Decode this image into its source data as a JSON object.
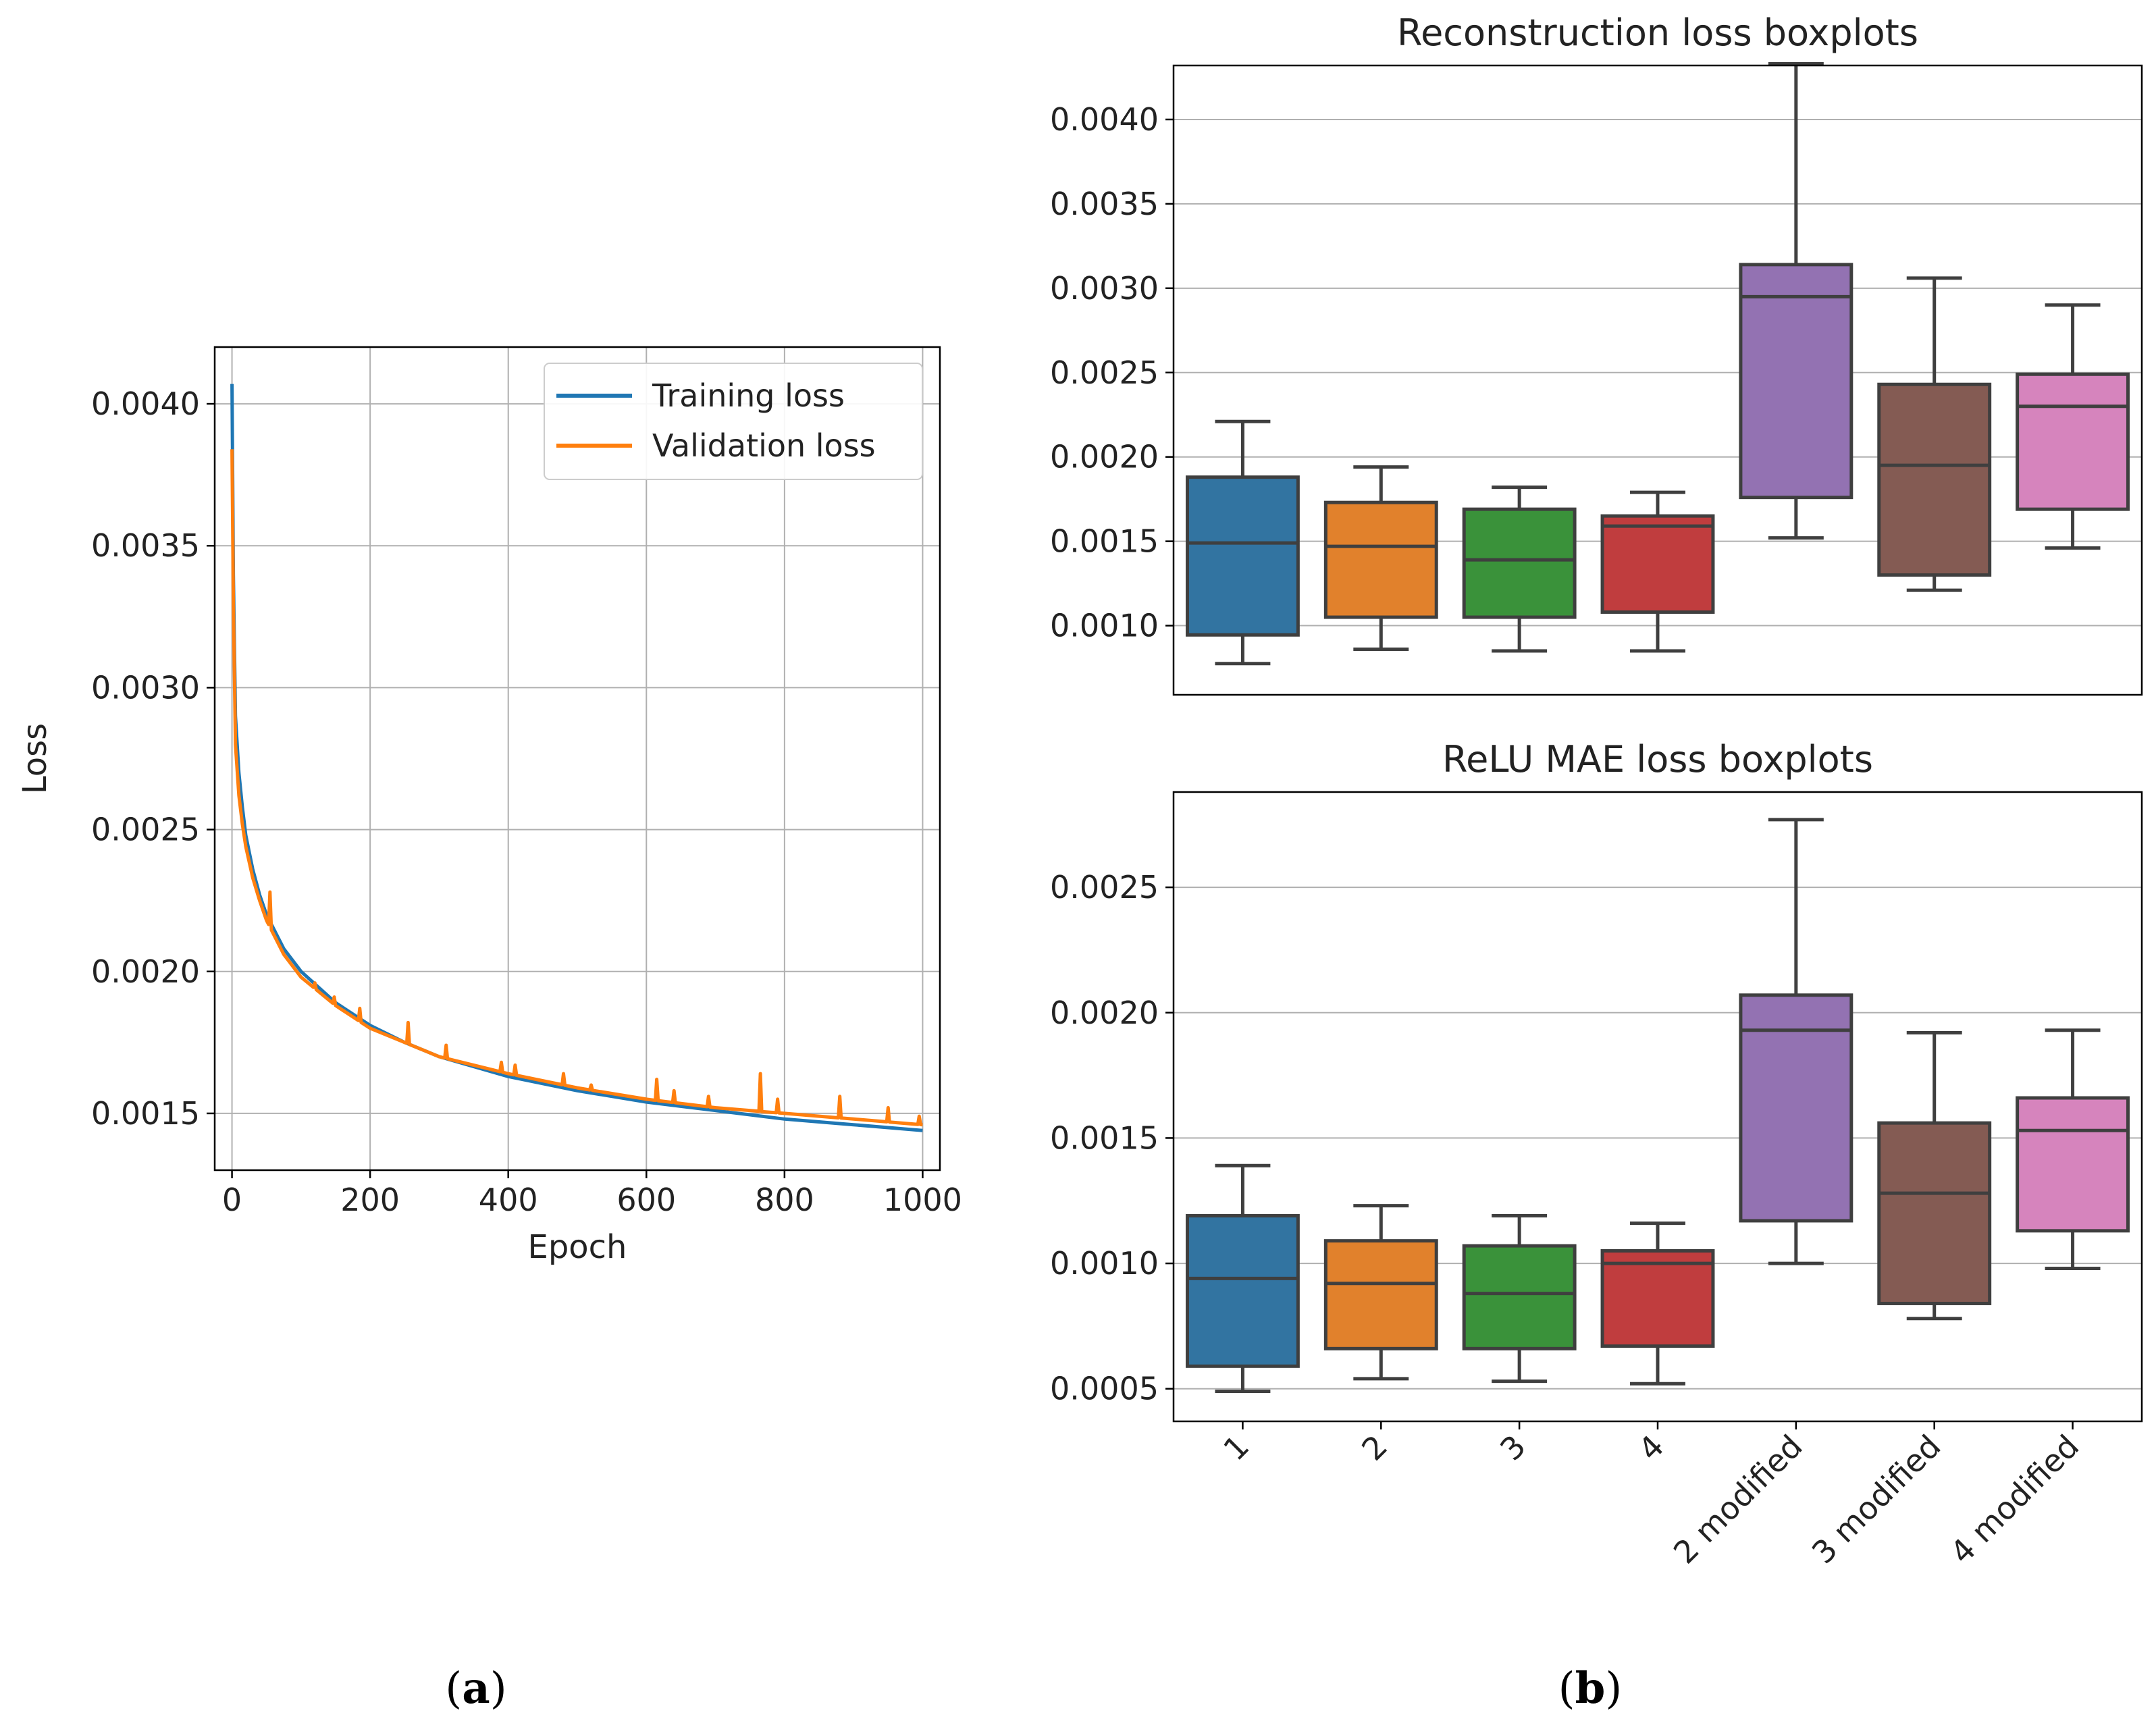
{
  "panels": {
    "a": {
      "open": "(",
      "letter": "a",
      "close": ")"
    },
    "b": {
      "open": "(",
      "letter": "b",
      "close": ")"
    }
  },
  "chart_data": [
    {
      "id": "loss-curve",
      "type": "line",
      "title": "",
      "xlabel": "Epoch",
      "ylabel": "Loss",
      "xlim": [
        -25,
        1025
      ],
      "ylim": [
        0.0013,
        0.0042
      ],
      "grid": true,
      "legend_position": "top-right",
      "xticks": [
        0,
        200,
        400,
        600,
        800,
        1000
      ],
      "xtick_labels": [
        "0",
        "200",
        "400",
        "600",
        "800",
        "1000"
      ],
      "yticks": [
        0.0015,
        0.002,
        0.0025,
        0.003,
        0.0035,
        0.004
      ],
      "ytick_labels": [
        "0.0015",
        "0.0020",
        "0.0025",
        "0.0030",
        "0.0035",
        "0.0040"
      ],
      "series": [
        {
          "name": "Training loss",
          "color": "#1f77b4",
          "x": [
            0,
            2,
            5,
            10,
            15,
            20,
            30,
            40,
            50,
            75,
            100,
            150,
            200,
            250,
            300,
            400,
            500,
            600,
            700,
            800,
            900,
            1000
          ],
          "y": [
            0.00407,
            0.0034,
            0.0029,
            0.0027,
            0.00258,
            0.00248,
            0.00236,
            0.00227,
            0.0022,
            0.00208,
            0.002,
            0.00189,
            0.00181,
            0.00175,
            0.0017,
            0.00163,
            0.00158,
            0.00154,
            0.00151,
            0.00148,
            0.00146,
            0.00144
          ]
        },
        {
          "name": "Validation loss",
          "color": "#ff7f0e",
          "x": [
            0,
            2,
            5,
            10,
            15,
            20,
            30,
            40,
            50,
            75,
            100,
            150,
            200,
            250,
            300,
            400,
            500,
            600,
            700,
            800,
            900,
            1000
          ],
          "y": [
            0.00384,
            0.0033,
            0.0028,
            0.00262,
            0.00252,
            0.00244,
            0.00233,
            0.00225,
            0.00218,
            0.00206,
            0.00198,
            0.00188,
            0.0018,
            0.00175,
            0.0017,
            0.00164,
            0.00159,
            0.00155,
            0.00152,
            0.0015,
            0.00148,
            0.00146
          ],
          "spikes": [
            [
              55,
              0.00228
            ],
            [
              120,
              0.00196
            ],
            [
              148,
              0.00191
            ],
            [
              185,
              0.00187
            ],
            [
              255,
              0.00182
            ],
            [
              310,
              0.00174
            ],
            [
              390,
              0.00168
            ],
            [
              410,
              0.00167
            ],
            [
              480,
              0.00164
            ],
            [
              520,
              0.0016
            ],
            [
              615,
              0.00162
            ],
            [
              640,
              0.00158
            ],
            [
              690,
              0.00156
            ],
            [
              765,
              0.00164
            ],
            [
              790,
              0.00155
            ],
            [
              880,
              0.00156
            ],
            [
              950,
              0.00152
            ],
            [
              995,
              0.00149
            ]
          ]
        }
      ]
    },
    {
      "id": "reconstruction-boxplot",
      "type": "box",
      "title": "Reconstruction loss boxplots",
      "xlabel": "",
      "ylabel": "",
      "categories": [
        "1",
        "2",
        "3",
        "4",
        "2 modified",
        "3 modified",
        "4 modified"
      ],
      "colors": [
        "#3274a1",
        "#e1812c",
        "#3a923a",
        "#c03d3e",
        "#9372b2",
        "#845b53",
        "#d684bd"
      ],
      "ylim": [
        0.00059,
        0.00432
      ],
      "grid": true,
      "yticks": [
        0.001,
        0.0015,
        0.002,
        0.0025,
        0.003,
        0.0035,
        0.004
      ],
      "ytick_labels": [
        "0.0010",
        "0.0015",
        "0.0020",
        "0.0025",
        "0.0030",
        "0.0035",
        "0.0040"
      ],
      "boxes": [
        {
          "whislo": 0.000775,
          "q1": 0.000945,
          "med": 0.00149,
          "q3": 0.00188,
          "whishi": 0.00221
        },
        {
          "whislo": 0.00086,
          "q1": 0.00105,
          "med": 0.00147,
          "q3": 0.00173,
          "whishi": 0.00194
        },
        {
          "whislo": 0.00085,
          "q1": 0.00105,
          "med": 0.00139,
          "q3": 0.00169,
          "whishi": 0.00182
        },
        {
          "whislo": 0.00085,
          "q1": 0.00108,
          "med": 0.00159,
          "q3": 0.00165,
          "whishi": 0.00179
        },
        {
          "whislo": 0.00152,
          "q1": 0.00176,
          "med": 0.00295,
          "q3": 0.00314,
          "whishi": 0.00433
        },
        {
          "whislo": 0.00121,
          "q1": 0.0013,
          "med": 0.00195,
          "q3": 0.00243,
          "whishi": 0.00306
        },
        {
          "whislo": 0.00146,
          "q1": 0.00169,
          "med": 0.0023,
          "q3": 0.00249,
          "whishi": 0.0029
        }
      ]
    },
    {
      "id": "relu-mae-boxplot",
      "type": "box",
      "title": "ReLU MAE loss boxplots",
      "xlabel": "",
      "ylabel": "",
      "categories": [
        "1",
        "2",
        "3",
        "4",
        "2 modified",
        "3 modified",
        "4 modified"
      ],
      "colors": [
        "#3274a1",
        "#e1812c",
        "#3a923a",
        "#c03d3e",
        "#9372b2",
        "#845b53",
        "#d684bd"
      ],
      "ylim": [
        0.00037,
        0.00288
      ],
      "grid": true,
      "yticks": [
        0.0005,
        0.001,
        0.0015,
        0.002,
        0.0025
      ],
      "ytick_labels": [
        "0.0005",
        "0.0010",
        "0.0015",
        "0.0020",
        "0.0025"
      ],
      "boxes": [
        {
          "whislo": 0.00049,
          "q1": 0.00059,
          "med": 0.00094,
          "q3": 0.00119,
          "whishi": 0.00139
        },
        {
          "whislo": 0.00054,
          "q1": 0.00066,
          "med": 0.00092,
          "q3": 0.00109,
          "whishi": 0.00123
        },
        {
          "whislo": 0.00053,
          "q1": 0.00066,
          "med": 0.00088,
          "q3": 0.00107,
          "whishi": 0.00119
        },
        {
          "whislo": 0.00052,
          "q1": 0.00067,
          "med": 0.001,
          "q3": 0.00105,
          "whishi": 0.00116
        },
        {
          "whislo": 0.001,
          "q1": 0.00117,
          "med": 0.00193,
          "q3": 0.00207,
          "whishi": 0.00277
        },
        {
          "whislo": 0.00078,
          "q1": 0.00084,
          "med": 0.00128,
          "q3": 0.00156,
          "whishi": 0.00192
        },
        {
          "whislo": 0.00098,
          "q1": 0.00113,
          "med": 0.00153,
          "q3": 0.00166,
          "whishi": 0.00193
        }
      ]
    }
  ]
}
